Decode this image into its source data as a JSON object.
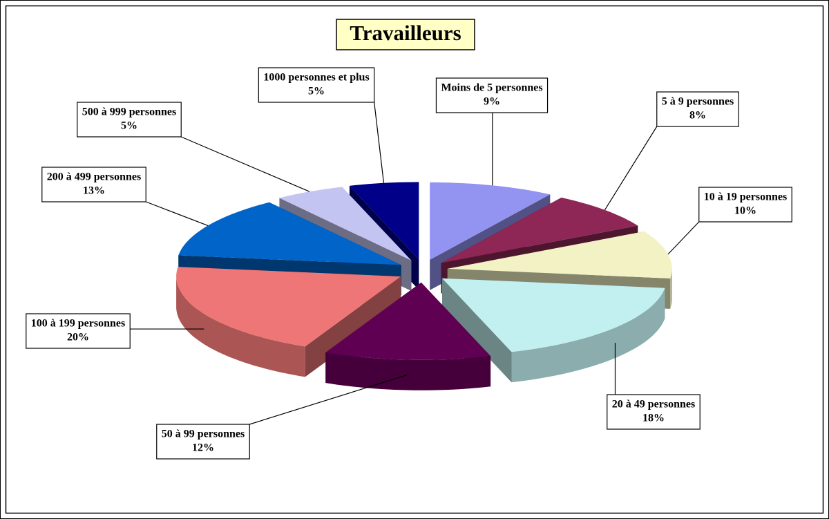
{
  "chart_data": {
    "type": "pie",
    "title": "Travailleurs",
    "categories": [
      "Moins de 5 personnes",
      "5 à 9 personnes",
      "10 à 19 personnes",
      "20 à 49 personnes",
      "50 à 99 personnes",
      "100 à 199 personnes",
      "200 à 499 personnes",
      "500 à 999 personnes",
      "1000 personnes et plus"
    ],
    "values": [
      9,
      8,
      10,
      18,
      12,
      20,
      13,
      5,
      5
    ],
    "value_labels": [
      "9%",
      "8%",
      "10%",
      "18%",
      "12%",
      "20%",
      "13%",
      "5%",
      "5%"
    ],
    "colors": [
      "#9393f2",
      "#8e2656",
      "#f2f2c4",
      "#c2f0f0",
      "#600052",
      "#ee7676",
      "#0064c8",
      "#c4c4f2",
      "#000088"
    ]
  }
}
